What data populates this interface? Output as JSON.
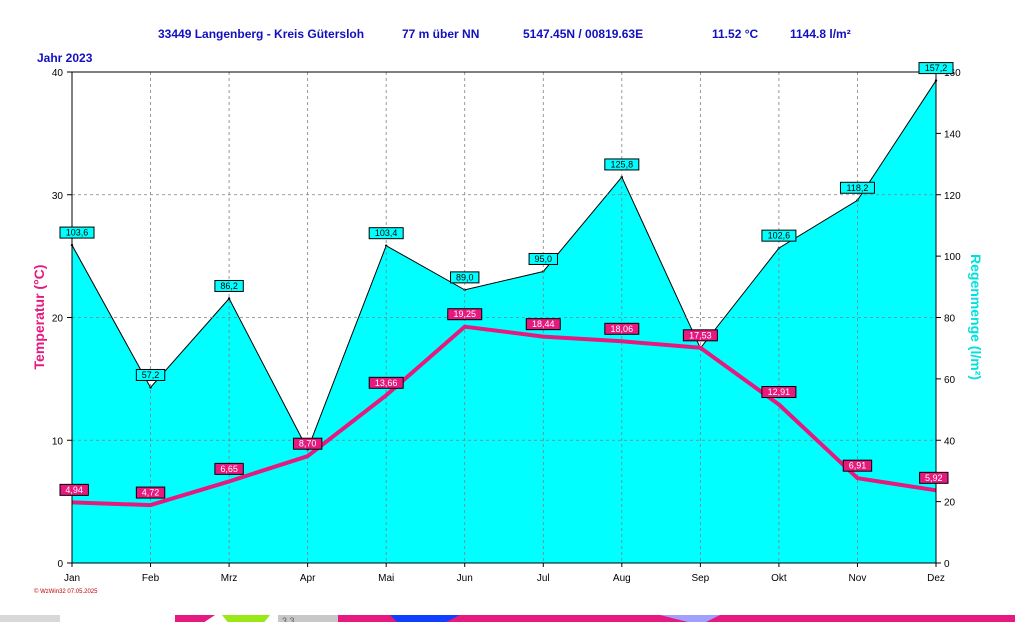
{
  "header": {
    "station": "33449 Langenberg - Kreis Gütersloh",
    "altitude": "77 m über NN",
    "coords": "5147.45N / 00819.63E",
    "mean_temp": "11.52 °C",
    "precip_total": "1144.8 l/m²"
  },
  "year_label": "Jahr  2023",
  "footer_credit": "© WzWin32  07.05.2025",
  "colors": {
    "temperature": "#e6197f",
    "precipitation_fill": "#00ffff",
    "header_text": "#1010c0",
    "precip_axis_label": "#00e0e0"
  },
  "chart_data": {
    "type": "area",
    "categories": [
      "Jan",
      "Feb",
      "Mrz",
      "Apr",
      "Mai",
      "Jun",
      "Jul",
      "Aug",
      "Sep",
      "Okt",
      "Nov",
      "Dez"
    ],
    "y_left": {
      "label": "Temperatur  (°C)",
      "range": [
        0,
        40
      ],
      "ticks": [
        "0",
        "10",
        "20",
        "30",
        "40"
      ]
    },
    "y_right": {
      "label": "Regenmenge  (l/m²)",
      "range": [
        0,
        160
      ],
      "ticks": [
        "0",
        "20",
        "40",
        "60",
        "80",
        "100",
        "120",
        "140",
        "160"
      ]
    },
    "grid": true,
    "precipitation": {
      "axis": "right",
      "values": [
        103.6,
        57.2,
        86.2,
        37.0,
        103.4,
        89.0,
        95.0,
        125.8,
        70.0,
        102.6,
        118.2,
        157.2
      ],
      "labels": [
        "103,6",
        "57,2",
        "86,2",
        "",
        "103,4",
        "89,0",
        "95,0",
        "125,8",
        "",
        "102,6",
        "118,2",
        "157,2"
      ]
    },
    "temperature": {
      "axis": "left",
      "values": [
        4.94,
        4.72,
        6.65,
        8.7,
        13.66,
        19.25,
        18.44,
        18.06,
        17.53,
        12.91,
        6.91,
        5.92
      ],
      "labels": [
        "4,94",
        "4,72",
        "6,65",
        "8,70",
        "13,66",
        "19,25",
        "18,44",
        "18,06",
        "17,53",
        "12,91",
        "6,91",
        "5,92"
      ]
    }
  }
}
